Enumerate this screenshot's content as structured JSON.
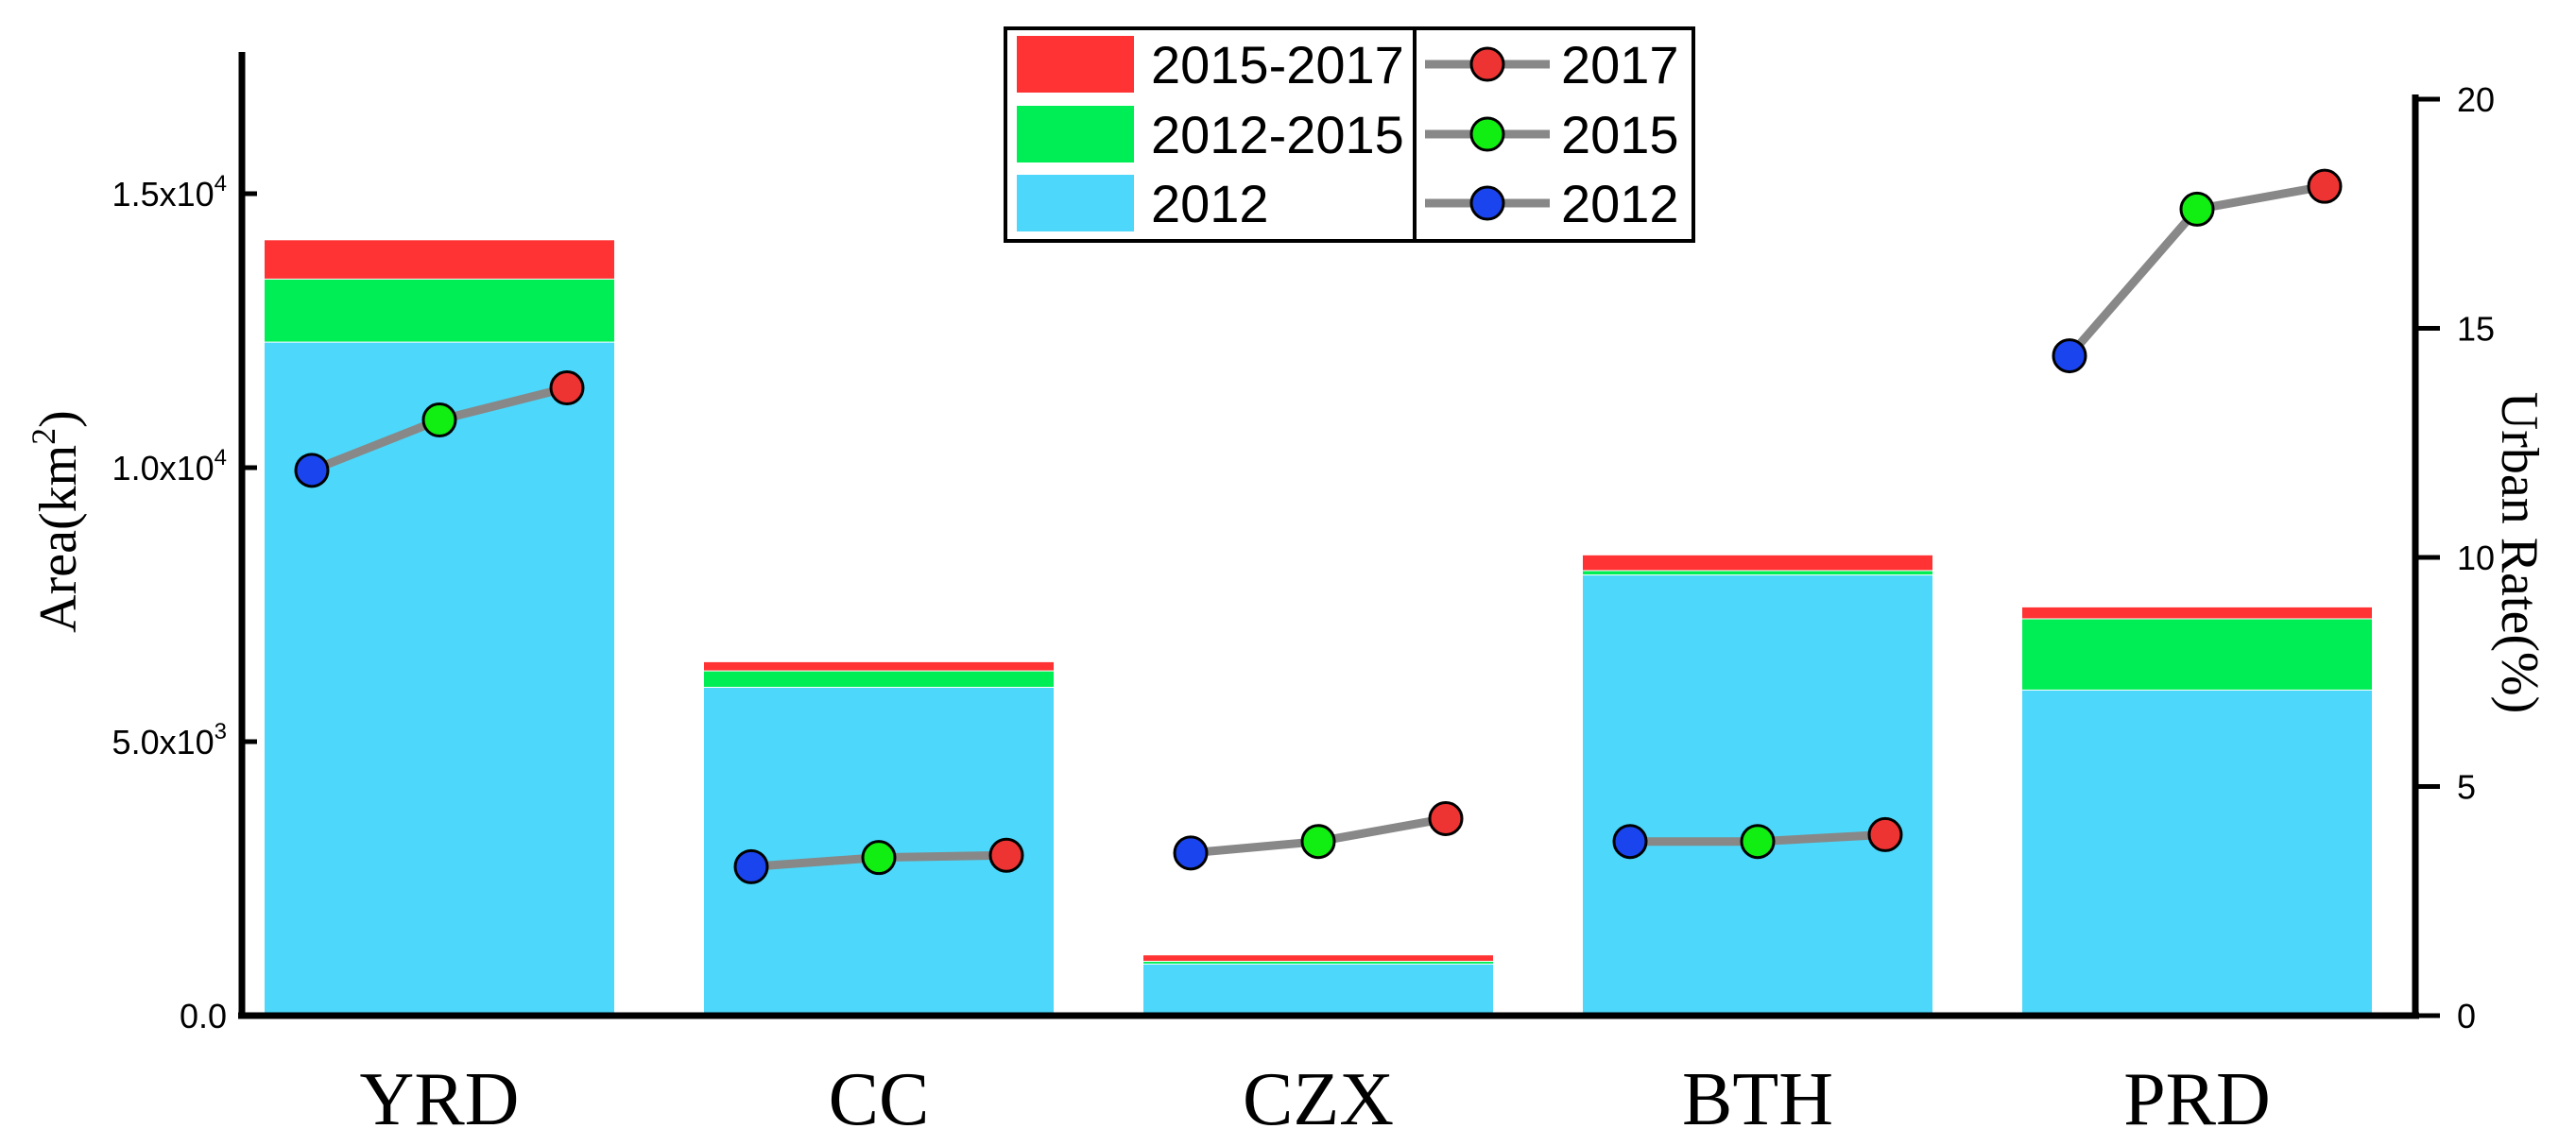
{
  "chart_data": {
    "type": "bar",
    "categories": [
      "YRD",
      "CC",
      "CZX",
      "BTH",
      "PRD"
    ],
    "bar_series": [
      {
        "name": "2012",
        "color": "#4dd7fa",
        "values": [
          12300,
          6000,
          950,
          8050,
          5950
        ]
      },
      {
        "name": "2012-2015",
        "color": "#00ee55",
        "values": [
          1150,
          300,
          50,
          80,
          1300
        ]
      },
      {
        "name": "2015-2017",
        "color": "#ff3333",
        "values": [
          700,
          150,
          100,
          270,
          200
        ]
      }
    ],
    "line_series": [
      {
        "name": "2012",
        "color": "#1a44ee",
        "values": [
          11.9,
          3.25,
          3.55,
          3.8,
          14.4
        ]
      },
      {
        "name": "2015",
        "color": "#11ee11",
        "values": [
          13.0,
          3.45,
          3.8,
          3.8,
          17.6
        ]
      },
      {
        "name": "2017",
        "color": "#ee3333",
        "values": [
          13.7,
          3.5,
          4.3,
          3.95,
          18.1
        ]
      }
    ],
    "line_color": "#888888",
    "ylabel_left_parts": {
      "base": "Area(km",
      "sup": "2",
      "close": ")"
    },
    "ylabel_right": "Urban Rate(%)",
    "ylim_left": [
      0,
      17500
    ],
    "ylim_right": [
      0,
      20
    ],
    "yticks_left": [
      {
        "value": 0,
        "label": "0.0",
        "sup": ""
      },
      {
        "value": 5000,
        "label": "5.0x10",
        "sup": "3"
      },
      {
        "value": 10000,
        "label": "1.0x10",
        "sup": "4"
      },
      {
        "value": 15000,
        "label": "1.5x10",
        "sup": "4"
      }
    ],
    "yticks_right": [
      {
        "value": 0,
        "label": "0"
      },
      {
        "value": 5,
        "label": "5"
      },
      {
        "value": 10,
        "label": "10"
      },
      {
        "value": 15,
        "label": "15"
      },
      {
        "value": 20,
        "label": "20"
      }
    ],
    "legend_placement": "top-center"
  }
}
